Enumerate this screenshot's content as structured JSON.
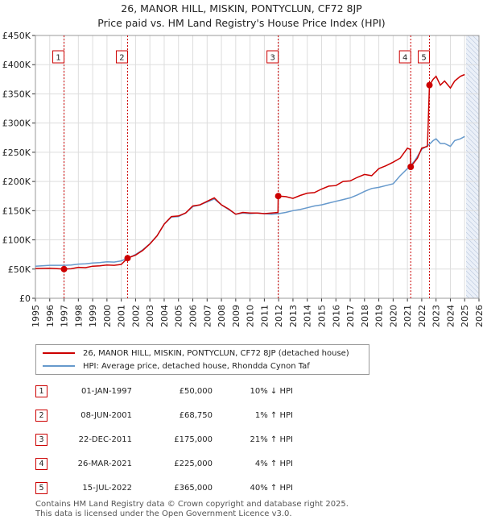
{
  "title_line1": "26, MANOR HILL, MISKIN, PONTYCLUN, CF72 8JP",
  "title_line2": "Price paid vs. HM Land Registry's House Price Index (HPI)",
  "legend": {
    "price_label": "26, MANOR HILL, MISKIN, PONTYCLUN, CF72 8JP (detached house)",
    "hpi_label": "HPI: Average price, detached house, Rhondda Cynon Taf"
  },
  "colors": {
    "price": "#cc0000",
    "hpi": "#6699cc",
    "shade": "#dde6f3",
    "grid": "#dddddd"
  },
  "sales": [
    {
      "num": "1",
      "date": "01-JAN-1997",
      "price": "£50,000",
      "hpi": "10% ↓ HPI"
    },
    {
      "num": "2",
      "date": "08-JUN-2001",
      "price": "£68,750",
      "hpi": "1% ↑ HPI"
    },
    {
      "num": "3",
      "date": "22-DEC-2011",
      "price": "£175,000",
      "hpi": "21% ↑ HPI"
    },
    {
      "num": "4",
      "date": "26-MAR-2021",
      "price": "£225,000",
      "hpi": "4% ↑ HPI"
    },
    {
      "num": "5",
      "date": "15-JUL-2022",
      "price": "£365,000",
      "hpi": "40% ↑ HPI"
    }
  ],
  "footer": {
    "line1": "Contains HM Land Registry data © Crown copyright and database right 2025.",
    "line2": "This data is licensed under the Open Government Licence v3.0."
  },
  "chart_data": {
    "type": "line",
    "xlim": [
      1995,
      2026
    ],
    "ylim": [
      0,
      450000
    ],
    "x_ticks": [
      "1995",
      "1996",
      "1997",
      "1998",
      "1999",
      "2000",
      "2001",
      "2002",
      "2003",
      "2004",
      "2005",
      "2006",
      "2007",
      "2008",
      "2009",
      "2010",
      "2011",
      "2012",
      "2013",
      "2014",
      "2015",
      "2016",
      "2017",
      "2018",
      "2019",
      "2020",
      "2021",
      "2022",
      "2023",
      "2024",
      "2025",
      "2026"
    ],
    "y_ticks": [
      {
        "value": 0,
        "label": "£0"
      },
      {
        "value": 50000,
        "label": "£50K"
      },
      {
        "value": 100000,
        "label": "£100K"
      },
      {
        "value": 150000,
        "label": "£150K"
      },
      {
        "value": 200000,
        "label": "£200K"
      },
      {
        "value": 250000,
        "label": "£250K"
      },
      {
        "value": 300000,
        "label": "£300K"
      },
      {
        "value": 350000,
        "label": "£350K"
      },
      {
        "value": 400000,
        "label": "£400K"
      },
      {
        "value": 450000,
        "label": "£450K"
      }
    ],
    "grid": true,
    "shaded_region_after": 2025.1,
    "sale_markers": [
      {
        "label": "1",
        "x": 1997.0,
        "y": 50000
      },
      {
        "label": "2",
        "x": 2001.44,
        "y": 68750
      },
      {
        "label": "3",
        "x": 2011.97,
        "y": 175000
      },
      {
        "label": "4",
        "x": 2021.23,
        "y": 225000
      },
      {
        "label": "5",
        "x": 2022.54,
        "y": 365000
      }
    ],
    "series": [
      {
        "name": "26, MANOR HILL, MISKIN, PONTYCLUN, CF72 8JP (detached house)",
        "x": [
          1995.0,
          1996.0,
          1997.0,
          1997.5,
          1998.0,
          1998.5,
          1999.0,
          1999.5,
          2000.0,
          2000.5,
          2001.0,
          2001.44,
          2002.0,
          2002.5,
          2003.0,
          2003.5,
          2004.0,
          2004.5,
          2005.0,
          2005.5,
          2006.0,
          2006.5,
          2007.0,
          2007.5,
          2008.0,
          2008.5,
          2009.0,
          2009.5,
          2010.0,
          2010.5,
          2011.0,
          2011.5,
          2011.95,
          2011.97,
          2012.5,
          2013.0,
          2013.5,
          2014.0,
          2014.5,
          2015.0,
          2015.5,
          2016.0,
          2016.5,
          2017.0,
          2017.5,
          2018.0,
          2018.5,
          2019.0,
          2019.5,
          2020.0,
          2020.5,
          2021.0,
          2021.2,
          2021.23,
          2021.7,
          2022.0,
          2022.4,
          2022.54,
          2022.8,
          2023.0,
          2023.3,
          2023.6,
          2024.0,
          2024.3,
          2024.7,
          2025.0
        ],
        "y": [
          51000,
          51500,
          50000,
          50500,
          53000,
          52500,
          55000,
          55500,
          57000,
          56500,
          58000,
          68750,
          74000,
          82000,
          93000,
          107000,
          127000,
          140000,
          141000,
          146000,
          158000,
          160000,
          166000,
          172000,
          160000,
          153000,
          144000,
          147000,
          146000,
          146000,
          145000,
          146000,
          147000,
          175000,
          174000,
          171000,
          176000,
          180000,
          181000,
          187000,
          192000,
          193000,
          200000,
          201000,
          207000,
          212000,
          210000,
          222000,
          227000,
          233000,
          240000,
          257000,
          255000,
          225000,
          240000,
          257000,
          260000,
          365000,
          375000,
          380000,
          365000,
          372000,
          360000,
          372000,
          380000,
          383000
        ]
      },
      {
        "name": "HPI: Average price, detached house, Rhondda Cynon Taf",
        "x": [
          1995.0,
          1996.0,
          1997.0,
          1997.5,
          1998.0,
          1998.5,
          1999.0,
          1999.5,
          2000.0,
          2000.5,
          2001.0,
          2001.5,
          2002.0,
          2002.5,
          2003.0,
          2003.5,
          2004.0,
          2004.5,
          2005.0,
          2005.5,
          2006.0,
          2006.5,
          2007.0,
          2007.5,
          2008.0,
          2008.5,
          2009.0,
          2009.5,
          2010.0,
          2010.5,
          2011.0,
          2011.5,
          2012.0,
          2012.5,
          2013.0,
          2013.5,
          2014.0,
          2014.5,
          2015.0,
          2015.5,
          2016.0,
          2016.5,
          2017.0,
          2017.5,
          2018.0,
          2018.5,
          2019.0,
          2019.5,
          2020.0,
          2020.5,
          2021.0,
          2021.5,
          2022.0,
          2022.5,
          2022.8,
          2023.0,
          2023.3,
          2023.6,
          2024.0,
          2024.3,
          2024.7,
          2025.0
        ],
        "y": [
          55000,
          56500,
          56500,
          57000,
          58500,
          59000,
          60500,
          61000,
          62500,
          62000,
          64000,
          69000,
          75000,
          83000,
          93500,
          107000,
          127000,
          139000,
          140000,
          146000,
          157000,
          160000,
          165000,
          170000,
          160000,
          152000,
          144000,
          146000,
          145000,
          146000,
          145000,
          144000,
          145000,
          147000,
          150000,
          152000,
          155000,
          158000,
          160000,
          163000,
          166000,
          169000,
          172000,
          177000,
          183000,
          188000,
          190000,
          193000,
          196000,
          210000,
          222000,
          235000,
          255000,
          263000,
          270000,
          273000,
          265000,
          265000,
          260000,
          270000,
          273000,
          277000
        ]
      }
    ]
  }
}
